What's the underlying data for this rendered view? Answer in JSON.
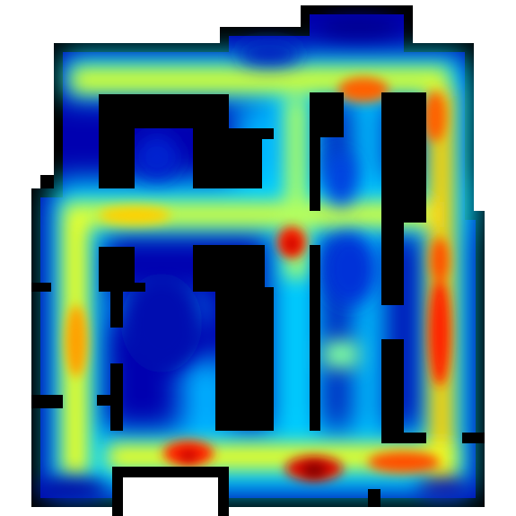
{
  "map": {
    "kind": "occupancy-heatmap",
    "colormap": "jet",
    "background_color": "#ffffff",
    "wall_color": "#000000",
    "high_intensity_color": "#a00000",
    "low_intensity_color": "#00008b",
    "legend": "none",
    "labels": "none"
  }
}
